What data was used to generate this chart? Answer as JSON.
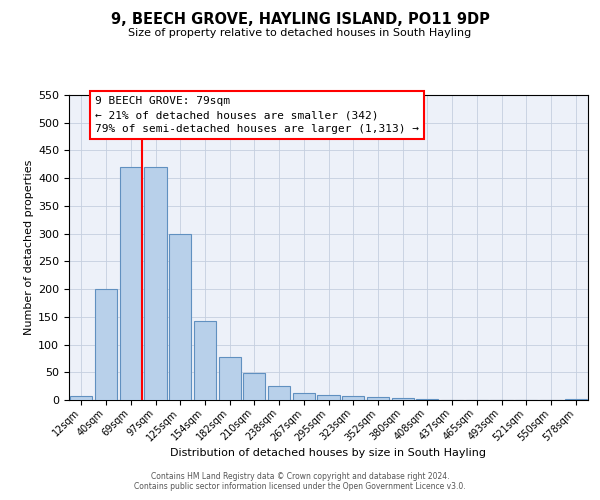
{
  "title": "9, BEECH GROVE, HAYLING ISLAND, PO11 9DP",
  "subtitle": "Size of property relative to detached houses in South Hayling",
  "xlabel": "Distribution of detached houses by size in South Hayling",
  "ylabel": "Number of detached properties",
  "bin_labels": [
    "12sqm",
    "40sqm",
    "69sqm",
    "97sqm",
    "125sqm",
    "154sqm",
    "182sqm",
    "210sqm",
    "238sqm",
    "267sqm",
    "295sqm",
    "323sqm",
    "352sqm",
    "380sqm",
    "408sqm",
    "437sqm",
    "465sqm",
    "493sqm",
    "521sqm",
    "550sqm",
    "578sqm"
  ],
  "bar_heights": [
    8,
    200,
    420,
    420,
    300,
    143,
    78,
    48,
    25,
    13,
    9,
    7,
    5,
    3,
    1,
    0,
    0,
    0,
    0,
    0,
    2
  ],
  "bar_color": "#b8d0ea",
  "bar_edge_color": "#6090c0",
  "annotation_title": "9 BEECH GROVE: 79sqm",
  "annotation_line1": "← 21% of detached houses are smaller (342)",
  "annotation_line2": "79% of semi-detached houses are larger (1,313) →",
  "red_line_bin": 2,
  "ylim_max": 550,
  "yticks": [
    0,
    50,
    100,
    150,
    200,
    250,
    300,
    350,
    400,
    450,
    500,
    550
  ],
  "footer1": "Contains HM Land Registry data © Crown copyright and database right 2024.",
  "footer2": "Contains public sector information licensed under the Open Government Licence v3.0.",
  "bg_color": "#edf1f9",
  "grid_color": "#c5cfdf"
}
